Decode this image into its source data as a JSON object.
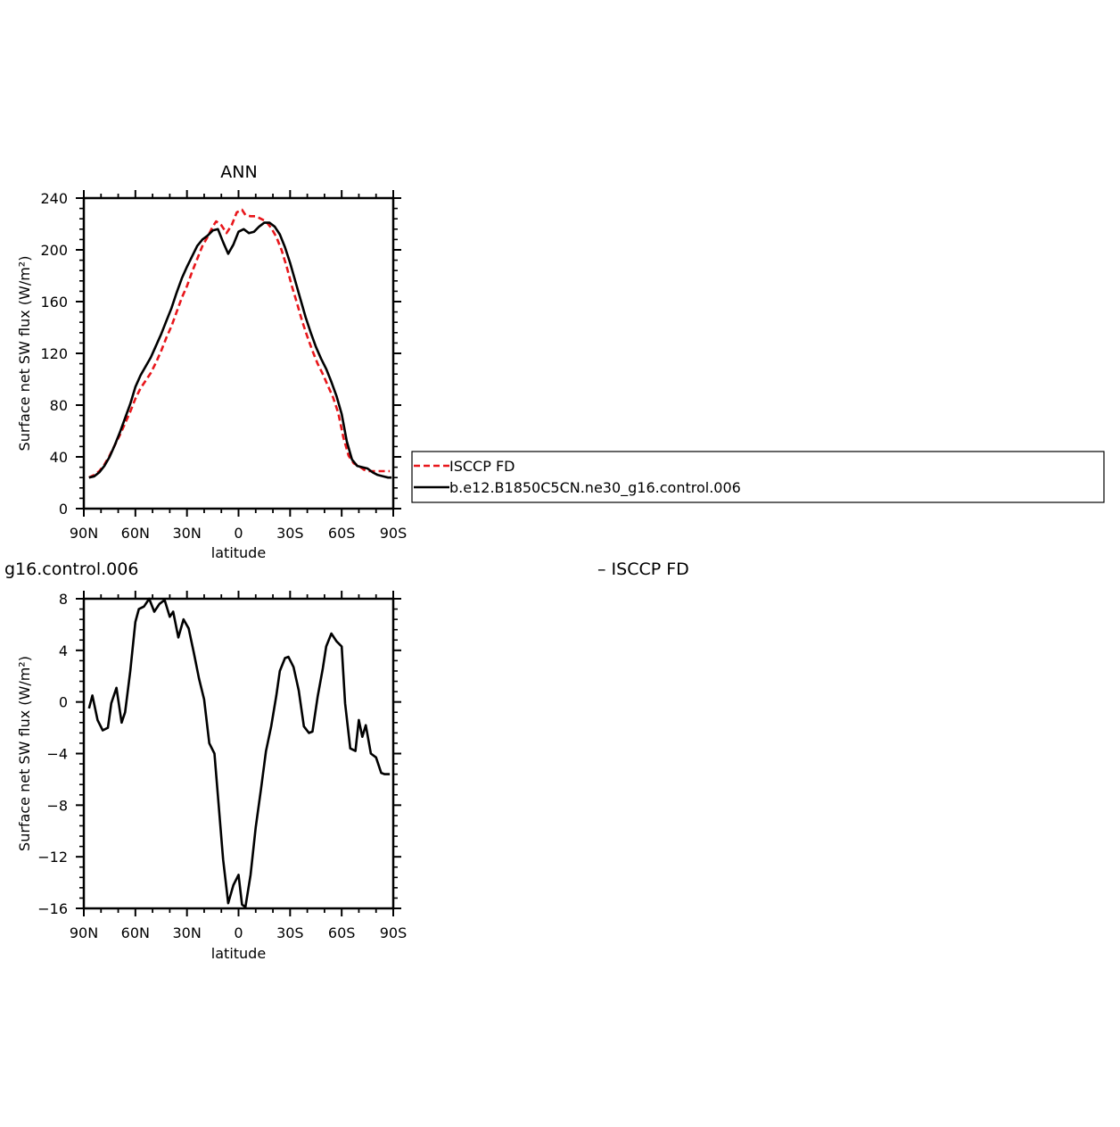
{
  "chart_data": [
    {
      "type": "line",
      "title": "ANN",
      "xlabel": "latitude",
      "ylabel": "Surface net SW flux (W/m²)",
      "xlim": [
        -90,
        90
      ],
      "ylim": [
        0,
        240
      ],
      "xticks": [
        {
          "value": -90,
          "label": "90N"
        },
        {
          "value": -60,
          "label": "60N"
        },
        {
          "value": -30,
          "label": "30N"
        },
        {
          "value": 0,
          "label": "0"
        },
        {
          "value": 30,
          "label": "30S"
        },
        {
          "value": 60,
          "label": "60S"
        },
        {
          "value": 90,
          "label": "90S"
        }
      ],
      "yticks": [
        0,
        40,
        80,
        120,
        160,
        200,
        240
      ],
      "legend": {
        "placement": "right",
        "entries": [
          {
            "name": "ISCCP FD",
            "color": "#e8161b",
            "dash": true
          },
          {
            "name": "b.e12.B1850C5CN.ne30_g16.control.006",
            "color": "#000000",
            "dash": false
          }
        ]
      },
      "series": [
        {
          "name": "ISCCP FD",
          "color": "#e8161b",
          "dashed": true,
          "x": [
            -87,
            -84,
            -81,
            -78,
            -75,
            -72,
            -69,
            -66,
            -63,
            -60,
            -57,
            -54,
            -51,
            -48,
            -45,
            -42,
            -39,
            -36,
            -33,
            -30,
            -27,
            -24,
            -21,
            -18,
            -15,
            -13,
            -10,
            -7,
            -4,
            -1,
            2,
            4,
            7,
            10,
            13,
            16,
            19,
            22,
            25,
            28,
            31,
            34,
            37,
            40,
            43,
            46,
            49,
            52,
            55,
            58,
            61,
            64,
            67,
            70,
            73,
            76,
            79,
            82,
            85,
            88
          ],
          "y": [
            24,
            26,
            29,
            34,
            41,
            49,
            57,
            66,
            75,
            85,
            93,
            99,
            105,
            113,
            122,
            132,
            141,
            152,
            163,
            172,
            183,
            193,
            203,
            210,
            218,
            222,
            219,
            213,
            219,
            229,
            231,
            227,
            226,
            226,
            224,
            222,
            217,
            210,
            200,
            187,
            172,
            159,
            145,
            133,
            122,
            112,
            104,
            95,
            86,
            74,
            55,
            41,
            35,
            33,
            30,
            29,
            29,
            29,
            29,
            29
          ]
        },
        {
          "name": "b.e12.B1850C5CN.ne30_g16.control.006",
          "color": "#000000",
          "dashed": false,
          "x": [
            -87,
            -84,
            -81,
            -78,
            -75,
            -72,
            -69,
            -66,
            -63,
            -60,
            -57,
            -54,
            -51,
            -48,
            -45,
            -42,
            -39,
            -36,
            -33,
            -30,
            -27,
            -24,
            -21,
            -18,
            -15,
            -12,
            -9,
            -6,
            -3,
            0,
            3,
            6,
            9,
            12,
            15,
            18,
            21,
            24,
            27,
            30,
            33,
            36,
            39,
            42,
            45,
            48,
            51,
            54,
            57,
            60,
            63,
            66,
            69,
            72,
            75,
            78,
            81,
            84,
            87,
            89
          ],
          "y": [
            24,
            25,
            28,
            33,
            40,
            49,
            59,
            70,
            81,
            94,
            103,
            110,
            117,
            126,
            135,
            145,
            155,
            167,
            178,
            187,
            195,
            203,
            208,
            211,
            215,
            216,
            206,
            197,
            204,
            214,
            216,
            213,
            214,
            218,
            221,
            221,
            218,
            212,
            202,
            190,
            176,
            162,
            148,
            136,
            125,
            116,
            108,
            98,
            87,
            73,
            52,
            38,
            33,
            32,
            31,
            28,
            26,
            25,
            24,
            24
          ]
        }
      ]
    },
    {
      "type": "line",
      "title": "g16.control.006",
      "title_right": "– ISCCP FD",
      "xlabel": "latitude",
      "ylabel": "Surface net SW flux (W/m²)",
      "xlim": [
        -90,
        90
      ],
      "ylim": [
        -16,
        8
      ],
      "xticks": [
        {
          "value": -90,
          "label": "90N"
        },
        {
          "value": -60,
          "label": "60N"
        },
        {
          "value": -30,
          "label": "30N"
        },
        {
          "value": 0,
          "label": "0"
        },
        {
          "value": 30,
          "label": "30S"
        },
        {
          "value": 60,
          "label": "60S"
        },
        {
          "value": 90,
          "label": "90S"
        }
      ],
      "yticks": [
        -16,
        -12,
        -8,
        -4,
        0,
        4,
        8
      ],
      "series": [
        {
          "color": "#000000",
          "dashed": false,
          "x": [
            -87,
            -85,
            -82,
            -79,
            -76,
            -74,
            -71,
            -68,
            -66,
            -63,
            -60,
            -58,
            -55,
            -52,
            -49,
            -46,
            -43,
            -40,
            -38,
            -35,
            -32,
            -29,
            -26,
            -23,
            -20,
            -17,
            -14,
            -12,
            -9,
            -6,
            -3,
            0,
            2,
            4,
            7,
            10,
            13,
            16,
            19,
            22,
            24,
            27,
            29,
            32,
            35,
            38,
            41,
            43,
            46,
            49,
            51,
            54,
            57,
            60,
            62,
            65,
            68,
            70,
            72,
            74,
            77,
            80,
            83,
            85,
            88
          ],
          "y": [
            -0.5,
            0.5,
            -1.4,
            -2.2,
            -2.0,
            -0.1,
            1.1,
            -1.6,
            -0.8,
            2.4,
            6.2,
            7.2,
            7.4,
            8.0,
            7.0,
            7.6,
            7.9,
            6.6,
            7.0,
            5.0,
            6.4,
            5.7,
            3.8,
            1.8,
            0.2,
            -3.2,
            -4.0,
            -7.3,
            -12.2,
            -15.6,
            -14.2,
            -13.4,
            -15.7,
            -15.9,
            -13.4,
            -9.7,
            -6.8,
            -3.8,
            -1.9,
            0.5,
            2.4,
            3.4,
            3.5,
            2.7,
            0.9,
            -1.9,
            -2.4,
            -2.3,
            0.4,
            2.6,
            4.3,
            5.3,
            4.7,
            4.3,
            -0.1,
            -3.6,
            -3.8,
            -1.4,
            -2.7,
            -1.8,
            -4.0,
            -4.3,
            -5.5,
            -5.6,
            -5.6
          ]
        }
      ]
    }
  ]
}
